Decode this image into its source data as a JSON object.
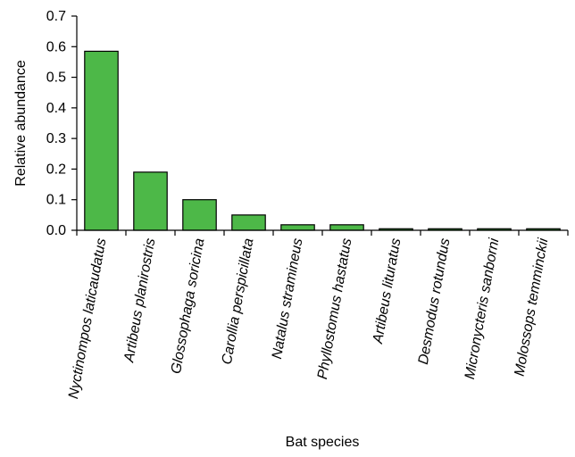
{
  "chart_data": {
    "type": "bar",
    "categories": [
      "Nyctinompos laticaudatus",
      "Artibeus planirostris",
      "Glossophaga soricina",
      "Carollia perspicillata",
      "Natalus stramineus",
      "Phyllostomus hastatus",
      "Artibeus lituratus",
      "Desmodus rotundus",
      "Micronycteris sanborni",
      "Molossops temminckii"
    ],
    "values": [
      0.585,
      0.19,
      0.1,
      0.05,
      0.018,
      0.018,
      0.005,
      0.005,
      0.005,
      0.005
    ],
    "xlabel": "Bat species",
    "ylabel": "Relative abundance",
    "ylim": [
      0,
      0.7
    ],
    "yticks": [
      0.0,
      0.1,
      0.2,
      0.3,
      0.4,
      0.5,
      0.6,
      0.7
    ],
    "ytick_labels": [
      "0.0",
      "0.1",
      "0.2",
      "0.3",
      "0.4",
      "0.5",
      "0.6",
      "0.7"
    ],
    "bar_color": "#4db848",
    "grid": false,
    "legend": "none"
  }
}
